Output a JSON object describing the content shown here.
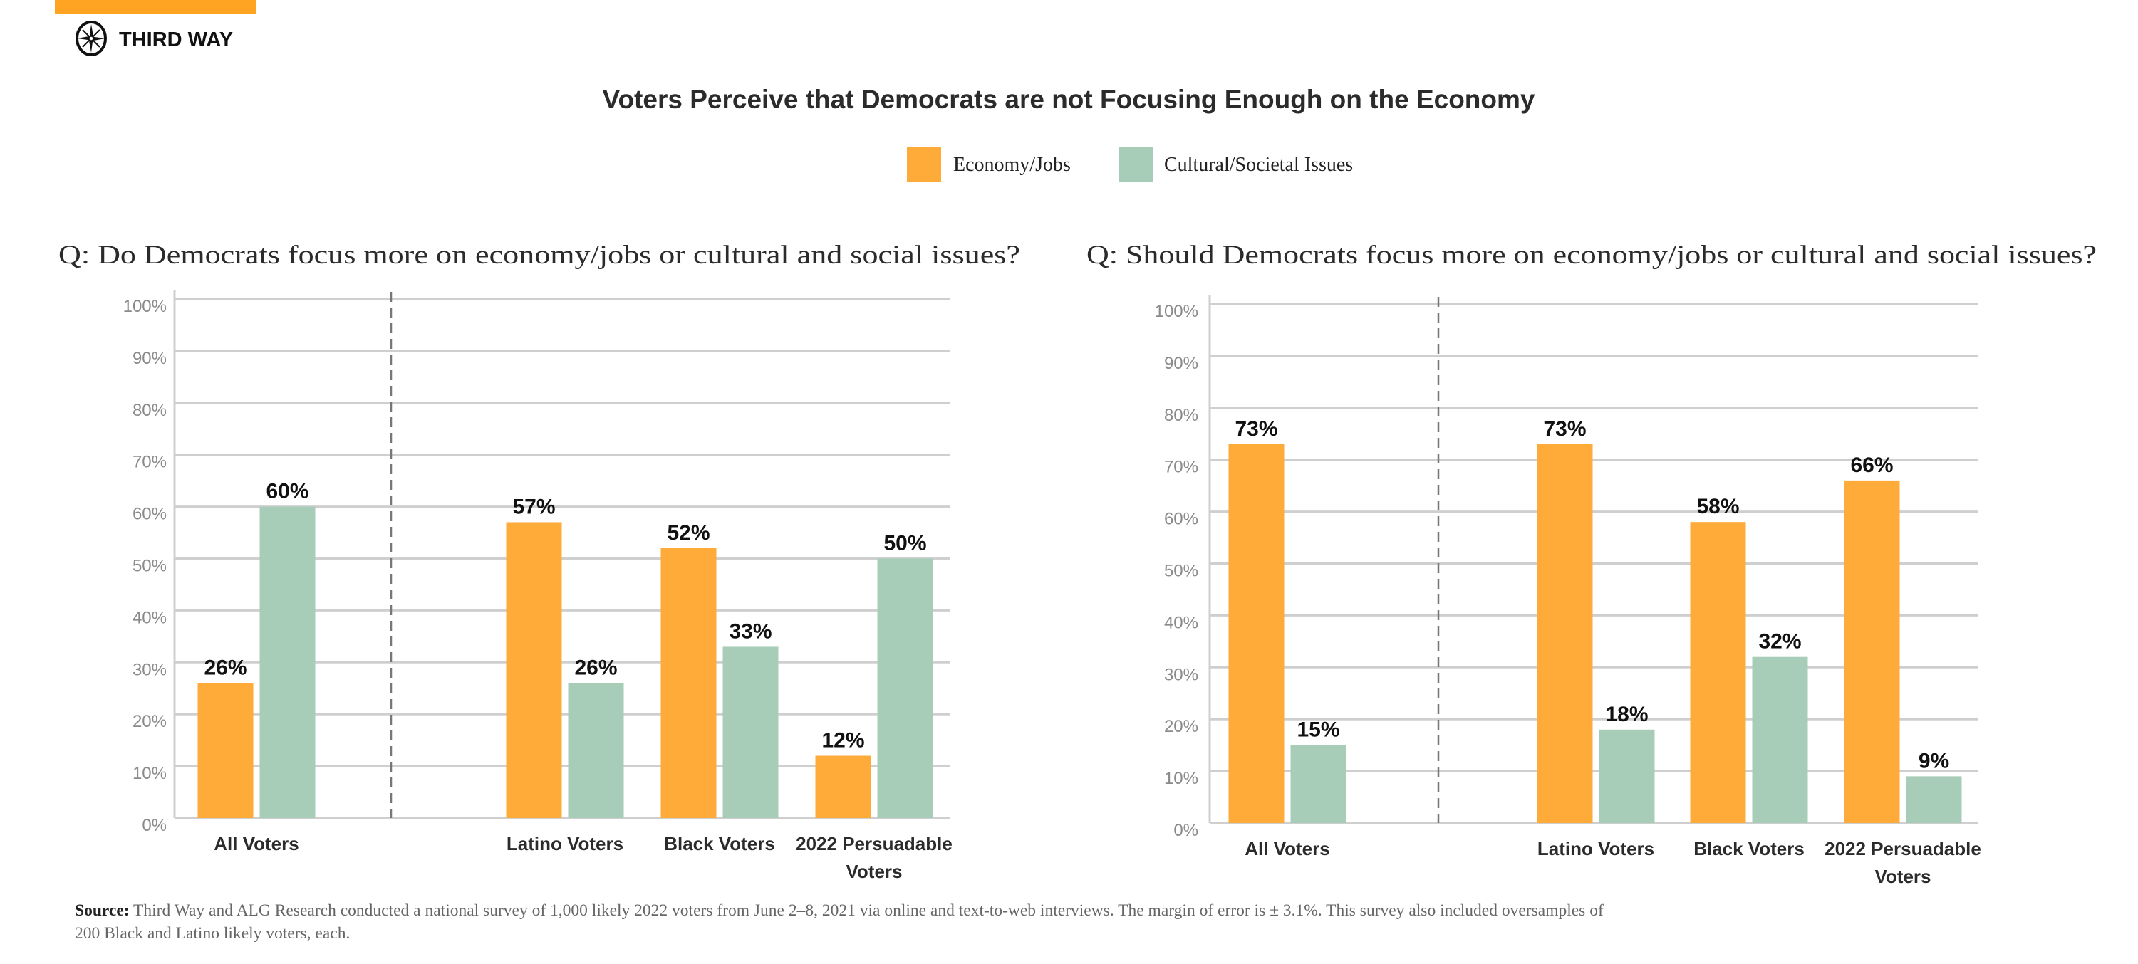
{
  "brand": {
    "name": "THIRD WAY",
    "accent_color": "#FFA322"
  },
  "title": "Voters Perceive that Democrats are not Focusing Enough on the Economy",
  "legend": [
    {
      "label": "Economy/Jobs",
      "color": "#FFAB3A"
    },
    {
      "label": "Cultural/Societal Issues",
      "color": "#A7CDB8"
    }
  ],
  "source": {
    "label": "Source:",
    "line1": "Third Way and ALG Research conducted a national survey of 1,000 likely 2022 voters from June 2–8, 2021 via online and text-to-web interviews. The margin of error is ± 3.1%. This survey also included oversamples of",
    "line2": "200 Black and Latino likely voters, each."
  },
  "chart_data": [
    {
      "type": "bar",
      "title": "Q: Do Democrats focus more on economy/jobs or cultural and social issues?",
      "categories": [
        "All Voters",
        "Latino Voters",
        "Black Voters",
        "2022 Persuadable Voters"
      ],
      "series": [
        {
          "name": "Economy/Jobs",
          "values": [
            26,
            57,
            52,
            12
          ]
        },
        {
          "name": "Cultural/Societal Issues",
          "values": [
            60,
            26,
            33,
            50
          ]
        }
      ],
      "ylim": [
        0,
        100
      ],
      "yticks": [
        "0%",
        "10%",
        "20%",
        "30%",
        "40%",
        "50%",
        "60%",
        "70%",
        "80%",
        "90%",
        "100%"
      ],
      "grid": true,
      "legend": "top-center"
    },
    {
      "type": "bar",
      "title": "Q: Should Democrats focus more on economy/jobs or cultural and social issues?",
      "categories": [
        "All Voters",
        "Latino Voters",
        "Black Voters",
        "2022 Persuadable Voters"
      ],
      "series": [
        {
          "name": "Economy/Jobs",
          "values": [
            73,
            73,
            58,
            66
          ]
        },
        {
          "name": "Cultural/Societal Issues",
          "values": [
            15,
            18,
            32,
            9
          ]
        }
      ],
      "ylim": [
        0,
        100
      ],
      "yticks": [
        "0%",
        "10%",
        "20%",
        "30%",
        "40%",
        "50%",
        "60%",
        "70%",
        "80%",
        "90%",
        "100%"
      ],
      "grid": true,
      "legend": "top-center"
    }
  ]
}
